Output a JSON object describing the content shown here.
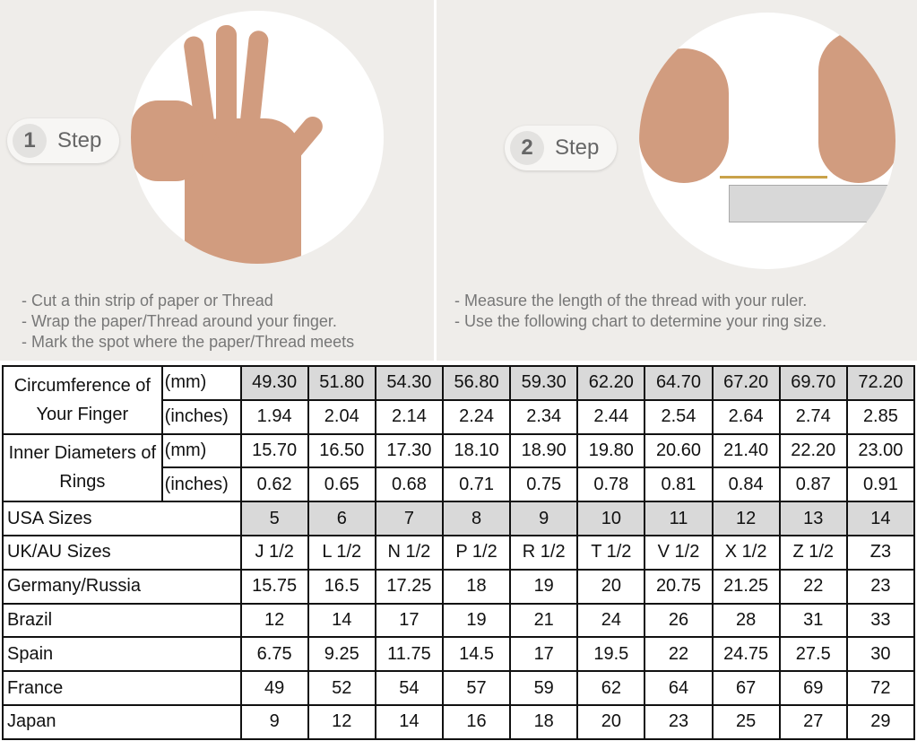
{
  "step1": {
    "number": "1",
    "label": "Step",
    "instructions": [
      "- Cut a thin strip of paper or Thread",
      "- Wrap the paper/Thread around your finger.",
      "- Mark the spot where the paper/Thread meets"
    ]
  },
  "step2": {
    "number": "2",
    "label": "Step",
    "instructions": [
      "- Measure the length of the thread with your ruler.",
      "- Use the following chart to determine your ring size."
    ]
  },
  "table": {
    "circumference": {
      "label": "Circumference of Your Finger",
      "mm_unit": "(mm)",
      "in_unit": "(inches)",
      "mm": [
        "49.30",
        "51.80",
        "54.30",
        "56.80",
        "59.30",
        "62.20",
        "64.70",
        "67.20",
        "69.70",
        "72.20"
      ],
      "inches": [
        "1.94",
        "2.04",
        "2.14",
        "2.24",
        "2.34",
        "2.44",
        "2.54",
        "2.64",
        "2.74",
        "2.85"
      ]
    },
    "inner": {
      "label": "Inner Diameters of Rings",
      "mm_unit": "(mm)",
      "in_unit": "(inches)",
      "mm": [
        "15.70",
        "16.50",
        "17.30",
        "18.10",
        "18.90",
        "19.80",
        "20.60",
        "21.40",
        "22.20",
        "23.00"
      ],
      "inches": [
        "0.62",
        "0.65",
        "0.68",
        "0.71",
        "0.75",
        "0.78",
        "0.81",
        "0.84",
        "0.87",
        "0.91"
      ]
    },
    "rows": [
      {
        "label": "USA Sizes",
        "values": [
          "5",
          "6",
          "7",
          "8",
          "9",
          "10",
          "11",
          "12",
          "13",
          "14"
        ]
      },
      {
        "label": "UK/AU Sizes",
        "values": [
          "J 1/2",
          "L 1/2",
          "N 1/2",
          "P 1/2",
          "R 1/2",
          "T 1/2",
          "V 1/2",
          "X 1/2",
          "Z 1/2",
          "Z3"
        ]
      },
      {
        "label": "Germany/Russia",
        "values": [
          "15.75",
          "16.5",
          "17.25",
          "18",
          "19",
          "20",
          "20.75",
          "21.25",
          "22",
          "23"
        ]
      },
      {
        "label": "Brazil",
        "values": [
          "12",
          "14",
          "17",
          "19",
          "21",
          "24",
          "26",
          "28",
          "31",
          "33"
        ]
      },
      {
        "label": "Spain",
        "values": [
          "6.75",
          "9.25",
          "11.75",
          "14.5",
          "17",
          "19.5",
          "22",
          "24.75",
          "27.5",
          "30"
        ]
      },
      {
        "label": "France",
        "values": [
          "49",
          "52",
          "54",
          "57",
          "59",
          "62",
          "64",
          "67",
          "69",
          "72"
        ]
      },
      {
        "label": "Japan",
        "values": [
          "9",
          "12",
          "14",
          "16",
          "18",
          "20",
          "23",
          "25",
          "27",
          "29"
        ]
      }
    ]
  },
  "colors": {
    "panel_bg": "#efedea",
    "shade": "#d9d9d9",
    "text_grey": "#777777"
  }
}
